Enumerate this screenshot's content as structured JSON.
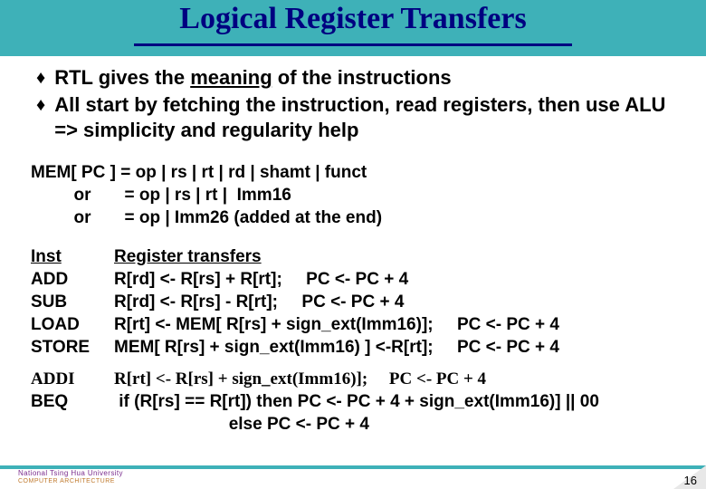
{
  "title": "Logical Register Transfers",
  "bullets": [
    {
      "pre": "RTL gives the ",
      "u": "meaning",
      "post": " of the instructions"
    },
    {
      "pre": "All start by fetching the instruction, read registers, then use ALU => simplicity and regularity help",
      "u": "",
      "post": ""
    }
  ],
  "mem": {
    "l1": "MEM[ PC ] = op | rs | rt | rd | shamt | funct",
    "l2": "         or       = op | rs | rt |  Imm16",
    "l3": "         or       = op | Imm26 (added at the end)"
  },
  "table_header": {
    "inst": "Inst",
    "rt": "Register transfers"
  },
  "rows": [
    {
      "inst": "ADD",
      "rt": "R[rd] <- R[rs] + R[rt];     PC <- PC + 4"
    },
    {
      "inst": "SUB",
      "rt": "R[rd] <- R[rs] - R[rt];     PC <- PC + 4"
    },
    {
      "inst": "LOAD",
      "rt": "R[rt] <- MEM[ R[rs] + sign_ext(Imm16)];     PC <- PC + 4"
    },
    {
      "inst": "STORE",
      "rt": "MEM[ R[rs] + sign_ext(Imm16) ] <-R[rt];     PC <- PC + 4"
    }
  ],
  "extra": {
    "addi_inst": "ADDI",
    "addi_rt": "R[rt] <- R[rs] + sign_ext(Imm16)];     PC <- PC + 4",
    "beq_inst": "BEQ",
    "beq_rt1": " if (R[rs] == R[rt]) then PC <- PC + 4 + sign_ext(Imm16)] || 00",
    "beq_rt2": "                        else PC <- PC + 4"
  },
  "footer": {
    "line1": "National Tsing Hua University",
    "line2": "COMPUTER ARCHITECTURE"
  },
  "page_number": "16",
  "colors": {
    "teal": "#3eb1b8",
    "navy": "#000080"
  }
}
